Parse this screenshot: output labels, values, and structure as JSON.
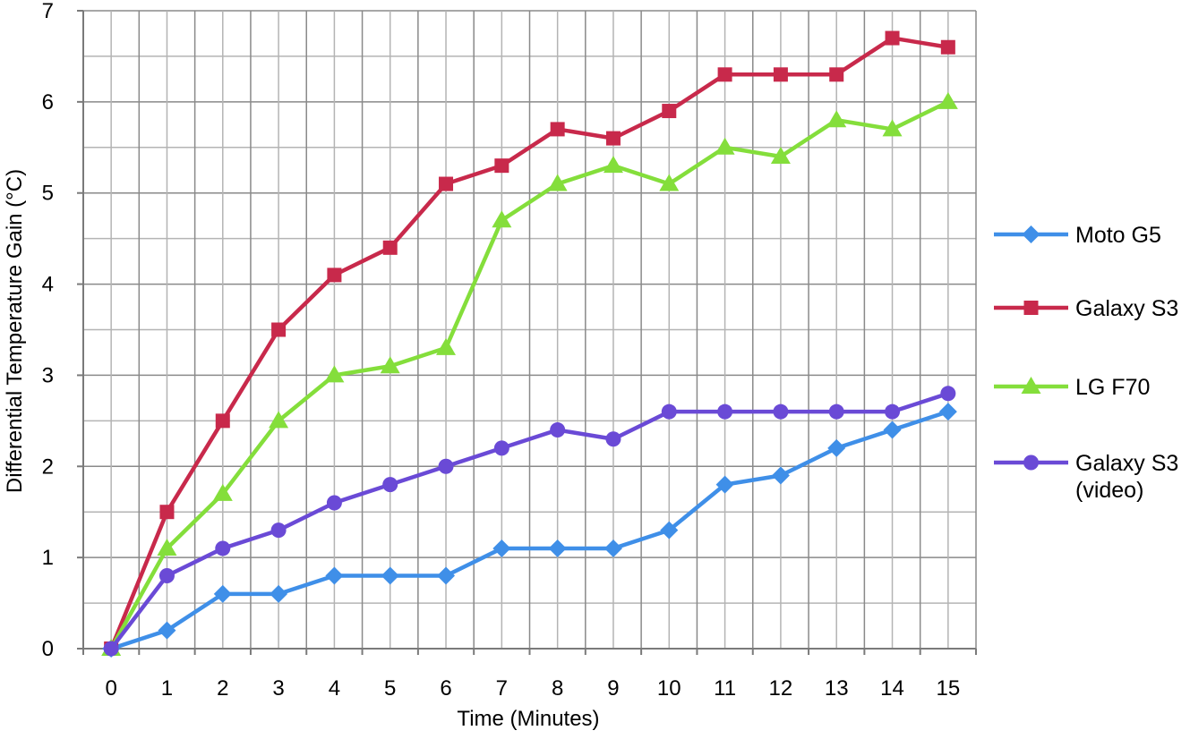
{
  "chart_data": {
    "type": "line",
    "title": "",
    "xlabel": "Time (Minutes)",
    "ylabel": "Differential Temperature Gain (°C)",
    "categories": [
      "0",
      "1",
      "2",
      "3",
      "4",
      "5",
      "6",
      "7",
      "8",
      "9",
      "10",
      "11",
      "12",
      "13",
      "14",
      "15"
    ],
    "ylim": [
      0,
      7
    ],
    "yticks": [
      "0",
      "1",
      "2",
      "3",
      "4",
      "5",
      "6",
      "7"
    ],
    "grid": true,
    "legend_position": "right",
    "series": [
      {
        "name": "Moto G5",
        "legend_lines": [
          "Moto G5"
        ],
        "color": "#3f8fe8",
        "marker": "diamond",
        "values": [
          0,
          0.2,
          0.6,
          0.6,
          0.8,
          0.8,
          0.8,
          1.1,
          1.1,
          1.1,
          1.3,
          1.8,
          1.9,
          2.2,
          2.4,
          2.6
        ]
      },
      {
        "name": "Galaxy S3",
        "legend_lines": [
          "Galaxy S3"
        ],
        "color": "#c8294b",
        "marker": "square",
        "values": [
          0,
          1.5,
          2.5,
          3.5,
          4.1,
          4.4,
          5.1,
          5.3,
          5.7,
          5.6,
          5.9,
          6.3,
          6.3,
          6.3,
          6.7,
          6.6
        ]
      },
      {
        "name": "LG F70",
        "legend_lines": [
          "LG F70"
        ],
        "color": "#84de3b",
        "marker": "triangle",
        "values": [
          0,
          1.1,
          1.7,
          2.5,
          3.0,
          3.1,
          3.3,
          4.7,
          5.1,
          5.3,
          5.1,
          5.5,
          5.4,
          5.8,
          5.7,
          6.0
        ]
      },
      {
        "name": "Galaxy S3 (video)",
        "legend_lines": [
          "Galaxy S3",
          "(video)"
        ],
        "color": "#6a4ad6",
        "marker": "circle",
        "values": [
          0,
          0.8,
          1.1,
          1.3,
          1.6,
          1.8,
          2.0,
          2.2,
          2.4,
          2.3,
          2.6,
          2.6,
          2.6,
          2.6,
          2.6,
          2.8
        ]
      }
    ]
  }
}
